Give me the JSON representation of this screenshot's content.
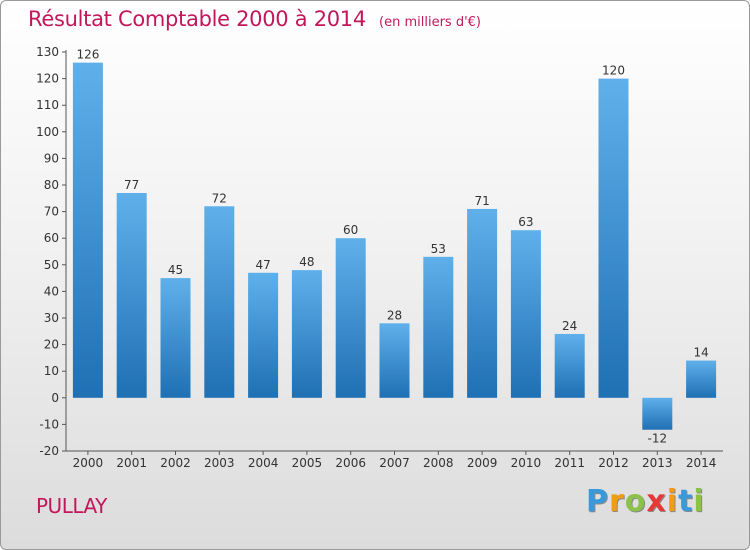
{
  "title": "Résultat Comptable 2000 à 2014",
  "subtitle": "(en milliers d'€)",
  "place": "PULLAY",
  "brand": {
    "letters": [
      "P",
      "r",
      "o",
      "x",
      "i",
      "t",
      "i"
    ],
    "colors": [
      "#3a9ad9",
      "#f39c12",
      "#8bc34a",
      "#e53935",
      "#f39c12",
      "#3a9ad9",
      "#8bc34a"
    ]
  },
  "colors": {
    "title": "#c2185b",
    "bar_light": "#5fb0ea",
    "bar_dark": "#1f70b4"
  },
  "chart_data": {
    "type": "bar",
    "categories": [
      "2000",
      "2001",
      "2002",
      "2003",
      "2004",
      "2005",
      "2006",
      "2007",
      "2008",
      "2009",
      "2010",
      "2011",
      "2012",
      "2013",
      "2014"
    ],
    "values": [
      126,
      77,
      45,
      72,
      47,
      48,
      60,
      28,
      53,
      71,
      63,
      24,
      120,
      -12,
      14
    ],
    "value_labels": [
      "126",
      "77",
      "45",
      "72",
      "47",
      "48",
      "60",
      "28",
      "53",
      "71",
      "63",
      "24",
      "120",
      "-12",
      "14"
    ],
    "title": "Résultat Comptable 2000 à 2014",
    "xlabel": "",
    "ylabel": "",
    "ylim": [
      -20,
      130
    ],
    "yticks": [
      -20,
      -10,
      0,
      10,
      20,
      30,
      40,
      50,
      60,
      70,
      80,
      90,
      100,
      110,
      120,
      130
    ],
    "ytick_labels": [
      "-20",
      "-10",
      "0",
      "10",
      "20",
      "30",
      "40",
      "50",
      "60",
      "70",
      "80",
      "90",
      "100",
      "110",
      "120",
      "130"
    ],
    "grid": false,
    "legend": "none"
  }
}
